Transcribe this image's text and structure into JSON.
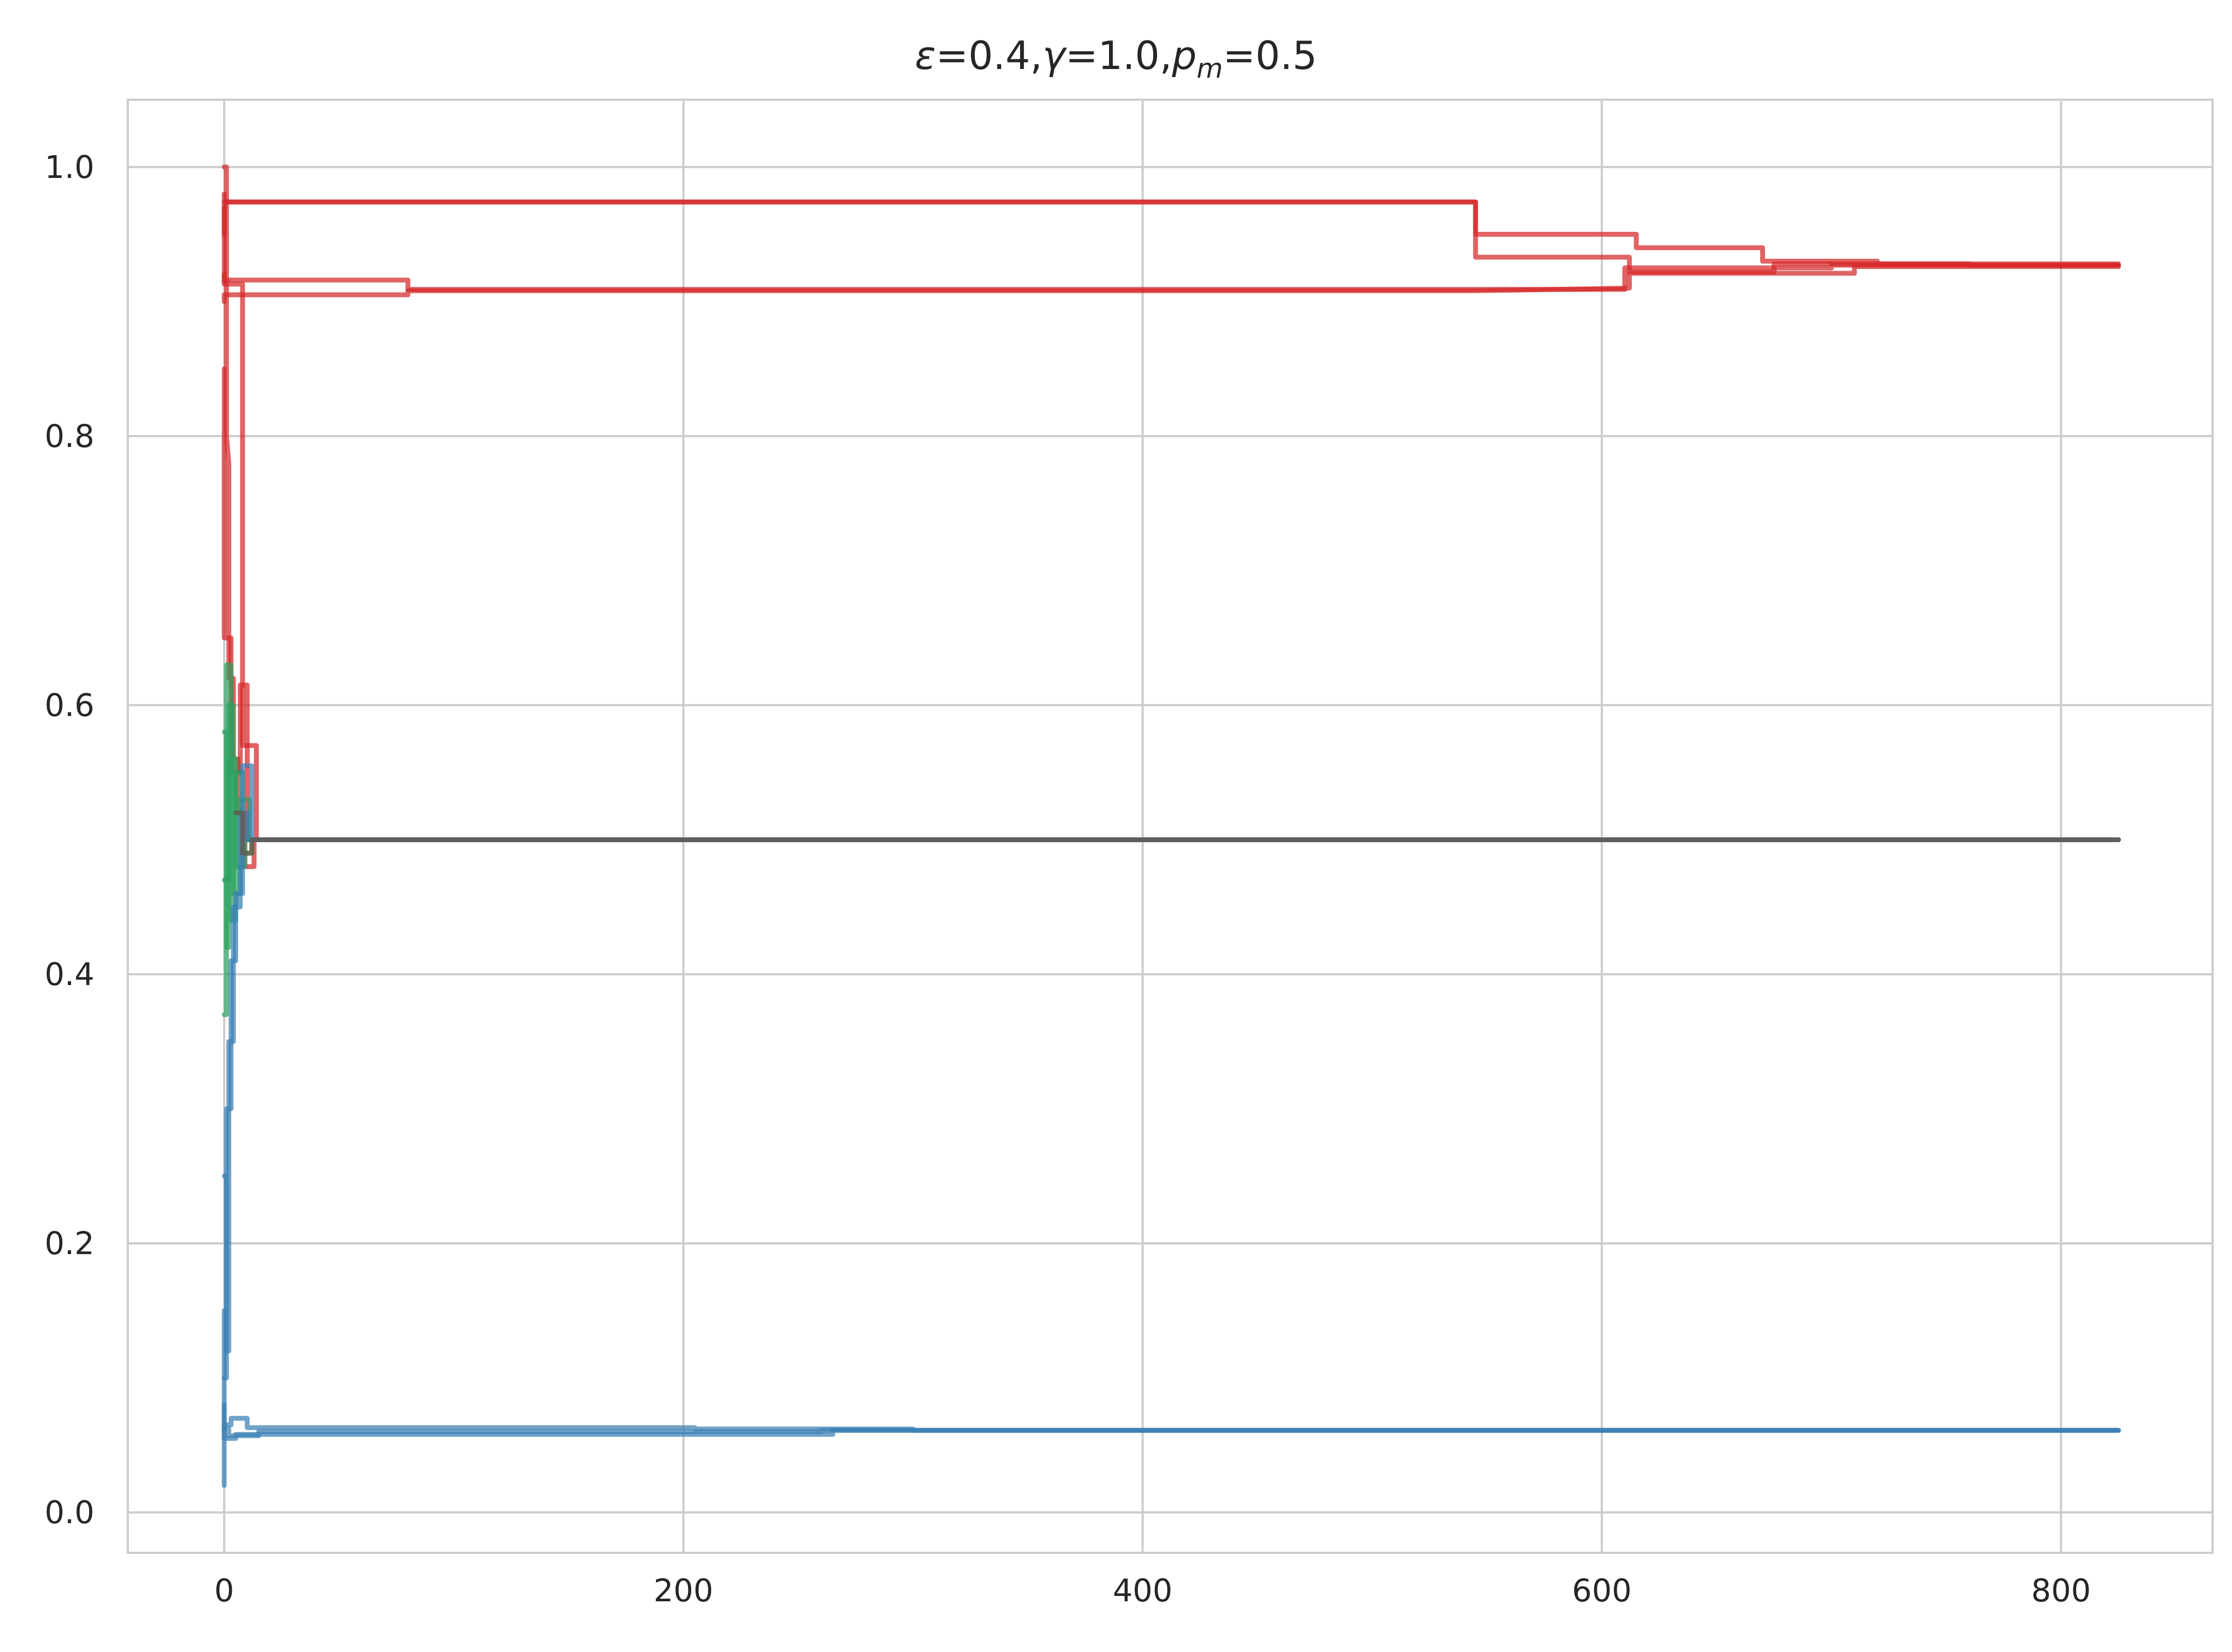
{
  "chart_data": {
    "type": "line",
    "title": {
      "epsilon": "ε",
      "epsilon_value": "=0.4,",
      "gamma": "γ",
      "gamma_value": "=1.0,",
      "p": "p",
      "p_sub": "m",
      "p_value": "=0.5"
    },
    "xlabel": "",
    "ylabel": "",
    "xlim": [
      -42,
      866
    ],
    "ylim": [
      -0.03,
      1.05
    ],
    "x_ticks": [
      0,
      200,
      400,
      600,
      800
    ],
    "x_tick_labels": [
      "0",
      "200",
      "400",
      "600",
      "800"
    ],
    "y_ticks": [
      0.0,
      0.2,
      0.4,
      0.6,
      0.8,
      1.0
    ],
    "y_tick_labels": [
      "0.0",
      "0.2",
      "0.4",
      "0.6",
      "0.8",
      "1.0"
    ],
    "grid": true,
    "colors": {
      "red": "#d62728",
      "blue": "#3a7fb4",
      "green": "#2ca25f",
      "brown": "#6b5344",
      "grid": "#cccccc",
      "spine": "#cccccc",
      "text": "#262626"
    },
    "series": [
      {
        "color": "red",
        "x": [
          0,
          0,
          0,
          545,
          545,
          615,
          615,
          670,
          670,
          720,
          720,
          825
        ],
        "y": [
          0.98,
          0.975,
          0.974,
          0.974,
          0.95,
          0.95,
          0.94,
          0.94,
          0.93,
          0.93,
          0.928,
          0.928
        ]
      },
      {
        "color": "red",
        "x": [
          0,
          0,
          545,
          545,
          612,
          612,
          675,
          675,
          760,
          760,
          825
        ],
        "y": [
          0.95,
          0.974,
          0.974,
          0.933,
          0.933,
          0.922,
          0.922,
          0.928,
          0.928,
          0.927,
          0.927
        ]
      },
      {
        "color": "red",
        "x": [
          0,
          0,
          0,
          80,
          80,
          610,
          610,
          700,
          700,
          825
        ],
        "y": [
          0.92,
          0.915,
          0.916,
          0.916,
          0.909,
          0.909,
          0.925,
          0.925,
          0.927,
          0.927
        ]
      },
      {
        "color": "red",
        "x": [
          0,
          0,
          80,
          80,
          545,
          545,
          612,
          612,
          710,
          710,
          825
        ],
        "y": [
          0.9,
          0.905,
          0.905,
          0.908,
          0.908,
          0.908,
          0.91,
          0.921,
          0.921,
          0.926,
          0.926
        ]
      },
      {
        "color": "red",
        "x": [
          0,
          0,
          8,
          8,
          14,
          14,
          825
        ],
        "y": [
          0.97,
          0.913,
          0.913,
          0.57,
          0.57,
          0.5,
          0.5
        ]
      },
      {
        "color": "red",
        "x": [
          0,
          1,
          1,
          2,
          2,
          4,
          4,
          6,
          6,
          9,
          9,
          13,
          13,
          825
        ],
        "y": [
          1.0,
          1.0,
          0.8,
          0.78,
          0.62,
          0.62,
          0.56,
          0.56,
          0.52,
          0.52,
          0.48,
          0.48,
          0.5,
          0.5
        ]
      },
      {
        "color": "red",
        "x": [
          0,
          0,
          3,
          3,
          7,
          7,
          10,
          10,
          825
        ],
        "y": [
          0.85,
          0.65,
          0.65,
          0.55,
          0.55,
          0.615,
          0.615,
          0.5,
          0.5
        ]
      },
      {
        "color": "green",
        "x": [
          0,
          1,
          1,
          3,
          3,
          5,
          5,
          8,
          8,
          12,
          12,
          825
        ],
        "y": [
          0.37,
          0.37,
          0.63,
          0.63,
          0.44,
          0.44,
          0.55,
          0.55,
          0.49,
          0.49,
          0.5,
          0.5
        ]
      },
      {
        "color": "green",
        "x": [
          0,
          1,
          1,
          2,
          2,
          4,
          4,
          7,
          7,
          11,
          11,
          825
        ],
        "y": [
          0.58,
          0.58,
          0.42,
          0.42,
          0.6,
          0.6,
          0.46,
          0.46,
          0.53,
          0.53,
          0.5,
          0.5
        ]
      },
      {
        "color": "green",
        "x": [
          0,
          2,
          2,
          5,
          5,
          9,
          9,
          825
        ],
        "y": [
          0.47,
          0.47,
          0.56,
          0.56,
          0.48,
          0.48,
          0.5,
          0.5
        ]
      },
      {
        "color": "blue",
        "x": [
          0,
          1,
          1,
          3,
          3,
          5,
          5,
          8,
          8,
          12,
          12,
          825
        ],
        "y": [
          0.1,
          0.1,
          0.3,
          0.3,
          0.41,
          0.41,
          0.46,
          0.46,
          0.555,
          0.555,
          0.5,
          0.5
        ]
      },
      {
        "color": "blue",
        "x": [
          0,
          1,
          1,
          2,
          2,
          4,
          4,
          7,
          7,
          10,
          10,
          825
        ],
        "y": [
          0.25,
          0.25,
          0.12,
          0.12,
          0.35,
          0.35,
          0.45,
          0.45,
          0.52,
          0.52,
          0.5,
          0.5
        ]
      },
      {
        "color": "brown",
        "x": [
          5,
          8,
          8,
          12,
          12,
          825
        ],
        "y": [
          0.52,
          0.52,
          0.49,
          0.49,
          0.5,
          0.5
        ]
      },
      {
        "color": "blue",
        "x": [
          0,
          0,
          3,
          3,
          10,
          10,
          205,
          205,
          300,
          300,
          825
        ],
        "y": [
          0.02,
          0.065,
          0.065,
          0.07,
          0.07,
          0.063,
          0.063,
          0.062,
          0.062,
          0.061,
          0.061
        ]
      },
      {
        "color": "blue",
        "x": [
          0,
          0,
          5,
          5,
          265,
          265,
          825
        ],
        "y": [
          0.15,
          0.055,
          0.055,
          0.058,
          0.058,
          0.061,
          0.061
        ]
      },
      {
        "color": "blue",
        "x": [
          0,
          0,
          2,
          2,
          15,
          15,
          260,
          260,
          825
        ],
        "y": [
          0.08,
          0.062,
          0.062,
          0.057,
          0.057,
          0.06,
          0.06,
          0.061,
          0.061
        ]
      }
    ]
  }
}
